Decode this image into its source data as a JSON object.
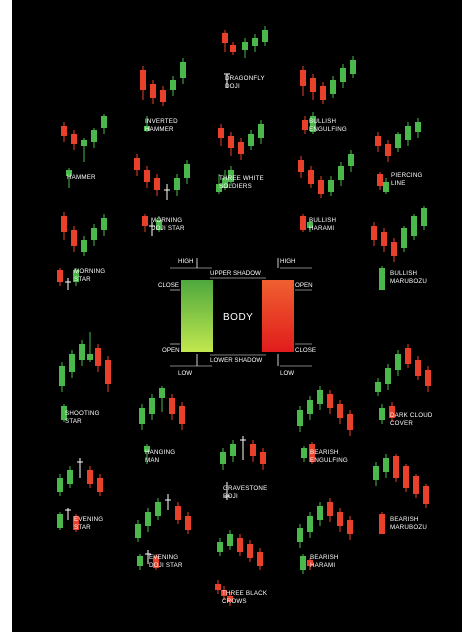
{
  "colors": {
    "background": "#000000",
    "bull": "#4ab84a",
    "bear": "#e8402a",
    "bull_light": "#b5e04a",
    "bear_dark": "#e02020",
    "text": "#ffffff"
  },
  "patterns": {
    "dragonfly_doji": "DRAGONFLY\nDOJI",
    "inverted_hammer": "INVERTED\nHAMMER",
    "bullish_engulfing": "BULLISH\nENGULFING",
    "hammer": "HAMMER",
    "three_white_soldiers": "THREE WHITE\nSOLDIERS",
    "piercing_line": "PIERCING\nLINE",
    "morning_doji_star": "MORNING\nDOJI STAR",
    "bullish_harami": "BULLISH\nHARAMI",
    "morning_star": "MORNING\nSTAR",
    "bullish_marubozu": "BULLISH\nMARUBOZU",
    "shooting_star": "SHOOTING\nSTAR",
    "dark_cloud_cover": "DARK CLOUD\nCOVER",
    "hanging_man": "HANGING\nMAN",
    "bearish_engulfing": "BEARISH\nENGULFING",
    "gravestone_doji": "GRAVESTONE\nDOJI",
    "evening_star": "EVENING\nSTAR",
    "bearish_marubozu": "BEARISH\nMARUBOZU",
    "evening_doji_star": "EVENING\nDOJI STAR",
    "bearish_harami": "BEARISH\nHARAMI",
    "three_black_crows": "THREE BLACK\nCROWS"
  },
  "anatomy": {
    "high": "HIGH",
    "low": "LOW",
    "close": "CLOSE",
    "open": "OPEN",
    "upper_shadow": "UPPER SHADOW",
    "lower_shadow": "LOWER SHADOW",
    "body": "BODY"
  }
}
